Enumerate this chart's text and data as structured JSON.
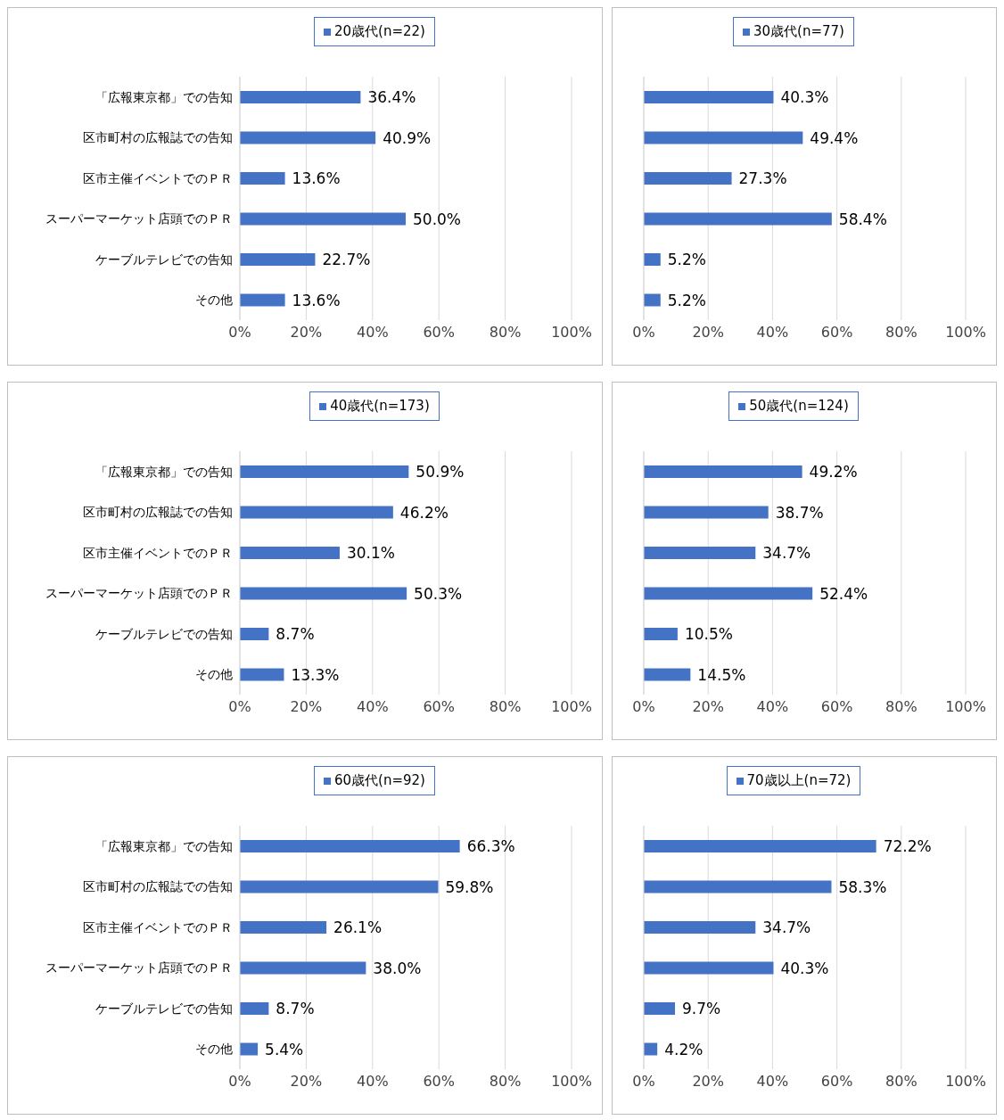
{
  "chart_data": [
    {
      "type": "bar",
      "orientation": "horizontal",
      "categories": [
        "「広報東京都」での告知",
        "区市町村の広報誌での告知",
        "区市主催イベントでのＰＲ",
        "スーパーマーケット店頭でのＰＲ",
        "ケーブルテレビでの告知",
        "その他"
      ],
      "series": [
        {
          "name": "20歳代(n=22)",
          "color": "#4472c4",
          "values": [
            36.4,
            40.9,
            13.6,
            50.0,
            22.7,
            13.6
          ],
          "value_labels": [
            "36.4%",
            "40.9%",
            "13.6%",
            "50.0%",
            "22.7%",
            "13.6%"
          ]
        }
      ],
      "xlim": [
        0,
        100
      ],
      "xticks": [
        {
          "value": 0,
          "label": "0%"
        },
        {
          "value": 20,
          "label": "20%"
        },
        {
          "value": 40,
          "label": "40%"
        },
        {
          "value": 60,
          "label": "60%"
        },
        {
          "value": 80,
          "label": "80%"
        },
        {
          "value": 100,
          "label": "100%"
        }
      ],
      "grid": "x",
      "legend": "top"
    },
    {
      "type": "bar",
      "orientation": "horizontal",
      "categories": [
        null,
        null,
        null,
        null,
        null,
        null
      ],
      "series": [
        {
          "name": "30歳代(n=77)",
          "color": "#4472c4",
          "values": [
            40.3,
            49.4,
            27.3,
            58.4,
            5.2,
            5.2
          ],
          "value_labels": [
            "40.3%",
            "49.4%",
            "27.3%",
            "58.4%",
            "5.2%",
            "5.2%"
          ]
        }
      ],
      "xlim": [
        0,
        100
      ],
      "xticks": [
        {
          "value": 0,
          "label": "0%"
        },
        {
          "value": 20,
          "label": "20%"
        },
        {
          "value": 40,
          "label": "40%"
        },
        {
          "value": 60,
          "label": "60%"
        },
        {
          "value": 80,
          "label": "80%"
        },
        {
          "value": 100,
          "label": "100%"
        }
      ],
      "grid": "x",
      "legend": "top",
      "tick_labels": "x"
    },
    {
      "type": "bar",
      "orientation": "horizontal",
      "categories": [
        "「広報東京都」での告知",
        "区市町村の広報誌での告知",
        "区市主催イベントでのＰＲ",
        "スーパーマーケット店頭でのＰＲ",
        "ケーブルテレビでの告知",
        "その他"
      ],
      "series": [
        {
          "name": "40歳代(n=173)",
          "color": "#4472c4",
          "values": [
            50.9,
            46.2,
            30.1,
            50.3,
            8.7,
            13.3
          ],
          "value_labels": [
            "50.9%",
            "46.2%",
            "30.1%",
            "50.3%",
            "8.7%",
            "13.3%"
          ]
        }
      ],
      "xlim": [
        0,
        100
      ],
      "xticks": [
        {
          "value": 0,
          "label": "0%"
        },
        {
          "value": 20,
          "label": "20%"
        },
        {
          "value": 40,
          "label": "40%"
        },
        {
          "value": 60,
          "label": "60%"
        },
        {
          "value": 80,
          "label": "80%"
        },
        {
          "value": 100,
          "label": "100%"
        }
      ],
      "grid": "x",
      "legend": "top"
    },
    {
      "type": "bar",
      "orientation": "horizontal",
      "categories": [
        null,
        null,
        null,
        null,
        null,
        null
      ],
      "series": [
        {
          "name": "50歳代(n=124)",
          "color": "#4472c4",
          "values": [
            49.2,
            38.7,
            34.7,
            52.4,
            10.5,
            14.5
          ],
          "value_labels": [
            "49.2%",
            "38.7%",
            "34.7%",
            "52.4%",
            "10.5%",
            "14.5%"
          ]
        }
      ],
      "xlim": [
        0,
        100
      ],
      "xticks": [
        {
          "value": 0,
          "label": "0%"
        },
        {
          "value": 20,
          "label": "20%"
        },
        {
          "value": 40,
          "label": "40%"
        },
        {
          "value": 60,
          "label": "60%"
        },
        {
          "value": 80,
          "label": "80%"
        },
        {
          "value": 100,
          "label": "100%"
        }
      ],
      "grid": "x",
      "legend": "top",
      "tick_labels": "x"
    },
    {
      "type": "bar",
      "orientation": "horizontal",
      "categories": [
        "「広報東京都」での告知",
        "区市町村の広報誌での告知",
        "区市主催イベントでのＰＲ",
        "スーパーマーケット店頭でのＰＲ",
        "ケーブルテレビでの告知",
        "その他"
      ],
      "series": [
        {
          "name": "60歳代(n=92)",
          "color": "#4472c4",
          "values": [
            66.3,
            59.8,
            26.1,
            38.0,
            8.7,
            5.4
          ],
          "value_labels": [
            "66.3%",
            "59.8%",
            "26.1%",
            "38.0%",
            "8.7%",
            "5.4%"
          ]
        }
      ],
      "xlim": [
        0,
        100
      ],
      "xticks": [
        {
          "value": 0,
          "label": "0%"
        },
        {
          "value": 20,
          "label": "20%"
        },
        {
          "value": 40,
          "label": "40%"
        },
        {
          "value": 60,
          "label": "60%"
        },
        {
          "value": 80,
          "label": "80%"
        },
        {
          "value": 100,
          "label": "100%"
        }
      ],
      "grid": "x",
      "legend": "top"
    },
    {
      "type": "bar",
      "orientation": "horizontal",
      "categories": [
        null,
        null,
        null,
        null,
        null,
        null
      ],
      "series": [
        {
          "name": "70歳以上(n=72)",
          "color": "#4472c4",
          "values": [
            72.2,
            58.3,
            34.7,
            40.3,
            9.7,
            4.2
          ],
          "value_labels": [
            "72.2%",
            "58.3%",
            "34.7%",
            "40.3%",
            "9.7%",
            "4.2%"
          ]
        }
      ],
      "xlim": [
        0,
        100
      ],
      "xticks": [
        {
          "value": 0,
          "label": "0%"
        },
        {
          "value": 20,
          "label": "20%"
        },
        {
          "value": 40,
          "label": "40%"
        },
        {
          "value": 60,
          "label": "60%"
        },
        {
          "value": 80,
          "label": "80%"
        },
        {
          "value": 100,
          "label": "100%"
        }
      ],
      "grid": "x",
      "legend": "top",
      "tick_labels": "x"
    }
  ]
}
